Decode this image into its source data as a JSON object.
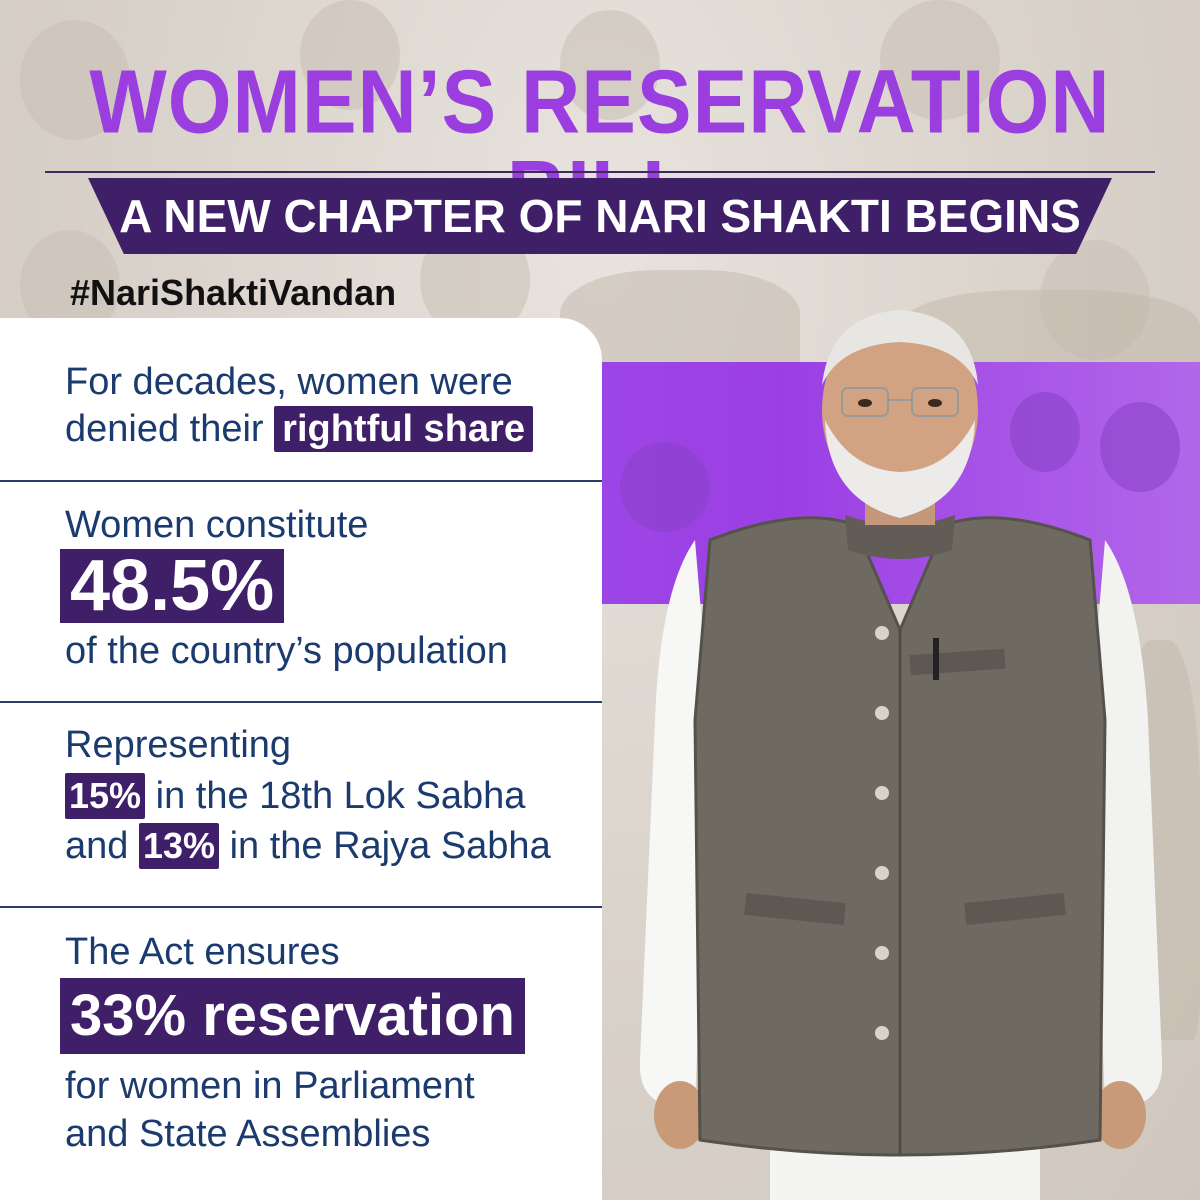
{
  "title": "WOMEN’S RESERVATION BILL",
  "subtitle": "A NEW CHAPTER OF NARI SHAKTI BEGINS",
  "hashtag": "#NariShaktiVandan",
  "colors": {
    "title_purple": "#9b3ee0",
    "banner_dark_purple": "#3f1f68",
    "text_navy": "#1b3b6f",
    "band_purple": "#9d47e6"
  },
  "facts": {
    "f1": {
      "line1": "For decades, women were",
      "line2_prefix": "denied their",
      "highlight": "rightful share"
    },
    "f2": {
      "line1": "Women constitute",
      "highlight": "48.5%",
      "line3": "of the country’s population"
    },
    "f3": {
      "line1": "Representing",
      "highlight_a": "15%",
      "line2_rest": "in the 18th Lok Sabha",
      "line3_prefix": "and",
      "highlight_b": "13%",
      "line3_rest": "in the Rajya Sabha"
    },
    "f4": {
      "line1": "The Act ensures",
      "highlight": "33% reservation",
      "line3": "for women in Parliament",
      "line4": "and State Assemblies"
    }
  }
}
